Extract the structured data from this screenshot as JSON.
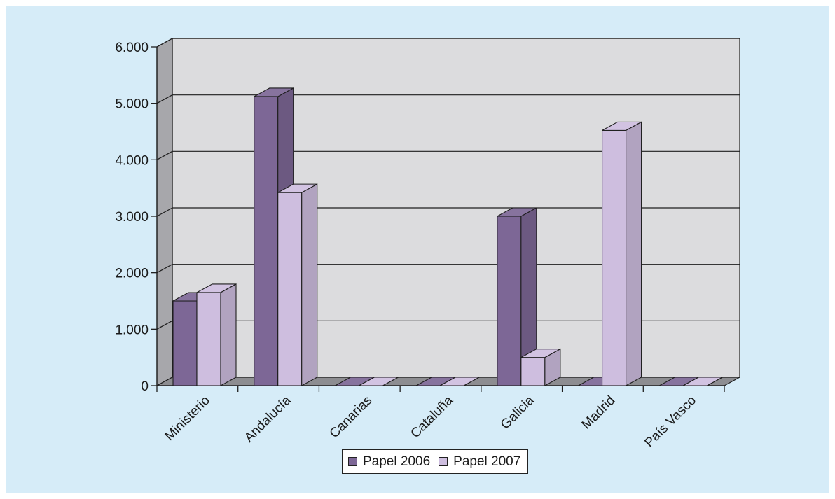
{
  "chart_data": {
    "type": "bar",
    "style": "3d-clustered-column",
    "title": "",
    "xlabel": "",
    "ylabel": "",
    "categories": [
      "Ministerio",
      "Andalucía",
      "Canarias",
      "Cataluña",
      "Galicia",
      "Madrid",
      "País Vasco"
    ],
    "series": [
      {
        "name": "Papel 2006",
        "values": [
          1500,
          5120,
          0,
          0,
          3000,
          0,
          0
        ],
        "color": "#7d6796"
      },
      {
        "name": "Papel 2007",
        "values": [
          1650,
          3420,
          0,
          0,
          500,
          4520,
          0
        ],
        "color": "#cebedf"
      }
    ],
    "ylim": [
      0,
      6000
    ],
    "yticks": [
      0,
      1000,
      2000,
      3000,
      4000,
      5000,
      6000
    ],
    "ytick_labels": [
      "0",
      "1.000",
      "2.000",
      "3.000",
      "4.000",
      "5.000",
      "6.000"
    ],
    "grid": true,
    "legend_position": "bottom-center",
    "colors": {
      "background": "#d6ecf8",
      "plot_wall": "#dcdcde",
      "side_wall": "#a7a7ab",
      "floor": "#8d8d91"
    }
  }
}
